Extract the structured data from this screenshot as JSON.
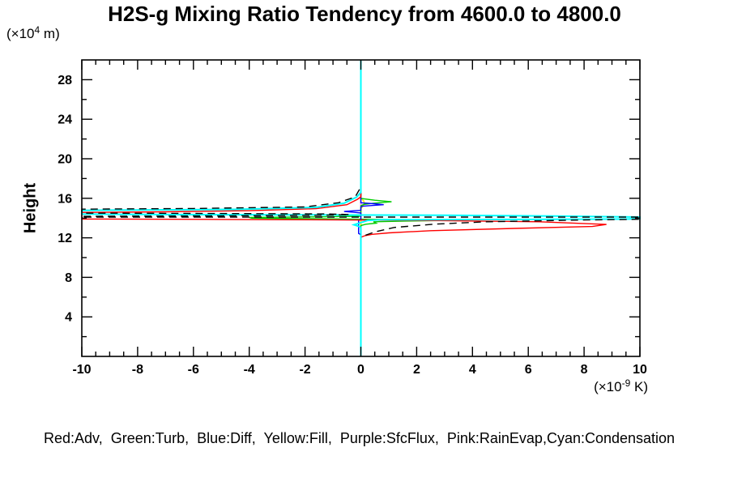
{
  "title": "H2S-g Mixing Ratio Tendency from 4600.0 to 4800.0",
  "axis_unit_left": {
    "prefix": "(×10",
    "sup": "4",
    "suffix": " m)"
  },
  "axis_unit_bottom": {
    "prefix": "(×10",
    "sup": "-9",
    "suffix": " K)"
  },
  "y_axis_title": "Height",
  "legend_text": "Red:Adv,  Green:Turb,  Blue:Diff,  Yellow:Fill,  Purple:SfcFlux,  Pink:RainEvap,Cyan:Condensation",
  "chart_data": {
    "type": "line",
    "title": "H2S-g Mixing Ratio Tendency from 4600.0 to 4800.0",
    "xlabel": "(×10^-9 K)",
    "ylabel": "Height (×10^4 m)",
    "xlim": [
      -10,
      10
    ],
    "ylim": [
      0,
      30
    ],
    "x_major_step": 2,
    "x_minor_step": 0.5,
    "y_major_step": 4,
    "y_minor_step": 2,
    "grid": false,
    "legend_position": "bottom-text-only",
    "x_tick_labels": [
      {
        "v": -10,
        "label": "-10"
      },
      {
        "v": -8,
        "label": "-8"
      },
      {
        "v": -6,
        "label": "-6"
      },
      {
        "v": -4,
        "label": "-4"
      },
      {
        "v": -2,
        "label": "-2"
      },
      {
        "v": 0,
        "label": "0"
      },
      {
        "v": 2,
        "label": "2"
      },
      {
        "v": 4,
        "label": "4"
      },
      {
        "v": 6,
        "label": "6"
      },
      {
        "v": 8,
        "label": "8"
      },
      {
        "v": 10,
        "label": "10"
      }
    ],
    "y_tick_labels": [
      {
        "v": 4,
        "label": "4"
      },
      {
        "v": 8,
        "label": "8"
      },
      {
        "v": 12,
        "label": "12"
      },
      {
        "v": 16,
        "label": "16"
      },
      {
        "v": 20,
        "label": "20"
      },
      {
        "v": 24,
        "label": "24"
      },
      {
        "v": 28,
        "label": "28"
      }
    ],
    "note": "Each series is a vertical profile: x = tendency value (clipped at ±10), y = height. All profiles are zero except near heights 12-16.5.",
    "series": [
      {
        "name": "SfcFlux",
        "color": "#aa00ff",
        "width": 1.4,
        "dash": "",
        "points": [
          [
            0,
            30
          ],
          [
            0,
            0
          ]
        ]
      },
      {
        "name": "RainEvap",
        "color": "#ff9ecd",
        "width": 1.4,
        "dash": "",
        "points": [
          [
            0,
            30
          ],
          [
            0,
            0
          ]
        ]
      },
      {
        "name": "Fill",
        "color": "#ffee00",
        "width": 1.6,
        "dash": "",
        "points": [
          [
            0,
            30
          ],
          [
            0,
            16.0
          ],
          [
            0.1,
            15.75
          ],
          [
            0.13,
            15.45
          ],
          [
            0.06,
            15.15
          ],
          [
            0,
            14.95
          ],
          [
            0,
            0
          ]
        ]
      },
      {
        "name": "Turb",
        "color": "#00cc00",
        "width": 1.4,
        "dash": "",
        "points": [
          [
            0,
            30
          ],
          [
            0,
            15.98
          ],
          [
            0.5,
            15.8
          ],
          [
            1.1,
            15.65
          ],
          [
            0.45,
            15.5
          ],
          [
            0.1,
            15.38
          ],
          [
            0,
            15.25
          ],
          [
            0,
            14.18
          ],
          [
            -1.5,
            14.12
          ],
          [
            -4,
            14.06
          ],
          [
            -3.9,
            13.98
          ],
          [
            -1.5,
            13.93
          ],
          [
            0.3,
            13.88
          ],
          [
            2.2,
            13.83
          ],
          [
            3.3,
            13.77
          ],
          [
            1.6,
            13.7
          ],
          [
            0.45,
            13.62
          ],
          [
            0.55,
            13.48
          ],
          [
            0.18,
            13.38
          ],
          [
            0,
            13.25
          ],
          [
            0,
            0
          ]
        ]
      },
      {
        "name": "Diff",
        "color": "#0000ff",
        "width": 1.4,
        "dash": "",
        "points": [
          [
            0,
            30
          ],
          [
            0,
            15.55
          ],
          [
            0.45,
            15.45
          ],
          [
            0.82,
            15.35
          ],
          [
            0.4,
            15.27
          ],
          [
            0.05,
            15.2
          ],
          [
            0,
            15.1
          ],
          [
            0,
            14.78
          ],
          [
            -0.35,
            14.72
          ],
          [
            -0.6,
            14.66
          ],
          [
            -0.3,
            14.6
          ],
          [
            0,
            14.52
          ],
          [
            0,
            13.85
          ],
          [
            -0.08,
            13.78
          ],
          [
            -0.08,
            12.45
          ],
          [
            0,
            12.3
          ],
          [
            0,
            0
          ]
        ]
      },
      {
        "name": "Adv",
        "color": "#ff0000",
        "width": 1.4,
        "dash": "",
        "points": [
          [
            0,
            30
          ],
          [
            0,
            16.15
          ],
          [
            -0.12,
            15.9
          ],
          [
            -0.5,
            15.35
          ],
          [
            -1.6,
            14.95
          ],
          [
            -4,
            14.75
          ],
          [
            -7,
            14.63
          ],
          [
            -10,
            14.57
          ],
          [
            -10,
            13.9
          ],
          [
            -5,
            13.86
          ],
          [
            -1,
            13.82
          ],
          [
            0.6,
            13.79
          ],
          [
            3,
            13.74
          ],
          [
            6.4,
            13.62
          ],
          [
            8.8,
            13.35
          ],
          [
            8.3,
            13.15
          ],
          [
            5.5,
            12.95
          ],
          [
            2.5,
            12.72
          ],
          [
            1,
            12.5
          ],
          [
            0.4,
            12.35
          ],
          [
            0.15,
            12.22
          ],
          [
            0,
            12.05
          ],
          [
            0,
            0
          ]
        ]
      },
      {
        "name": "Condensation",
        "color": "#00ffff",
        "width": 2,
        "dash": "",
        "points": [
          [
            0,
            30
          ],
          [
            0,
            16.6
          ],
          [
            -0.15,
            16.12
          ],
          [
            -0.6,
            15.5
          ],
          [
            -1.6,
            15.08
          ],
          [
            -4.5,
            14.88
          ],
          [
            -10,
            14.78
          ],
          [
            -10,
            14.4
          ],
          [
            -7.7,
            14.36
          ],
          [
            -3,
            14.33
          ],
          [
            0.3,
            14.3
          ],
          [
            3,
            14.28
          ],
          [
            7,
            14.2
          ],
          [
            10,
            14.1
          ],
          [
            10,
            13.94
          ],
          [
            9.6,
            13.9
          ],
          [
            5,
            13.86
          ],
          [
            0.7,
            13.83
          ],
          [
            0.25,
            13.76
          ],
          [
            -0.25,
            13.32
          ],
          [
            -0.1,
            13.18
          ],
          [
            0,
            13.05
          ],
          [
            0,
            0
          ]
        ]
      },
      {
        "name": "Net",
        "color": "#000000",
        "width": 1.4,
        "dash": "9 6",
        "points": [
          [
            -0.05,
            16.9
          ],
          [
            -0.2,
            16.15
          ],
          [
            -0.8,
            15.55
          ],
          [
            -2,
            15.12
          ],
          [
            -6,
            14.97
          ],
          [
            -10,
            14.9
          ],
          [
            -10,
            14.5
          ],
          [
            -5,
            14.46
          ],
          [
            -1.2,
            14.42
          ],
          [
            -0.4,
            14.35
          ],
          [
            -1.5,
            14.28
          ],
          [
            -5,
            14.22
          ],
          [
            -10,
            14.17
          ],
          [
            -10,
            14.1
          ],
          [
            10,
            14.1
          ],
          [
            10,
            13.88
          ],
          [
            7.9,
            13.8
          ],
          [
            4.5,
            13.62
          ],
          [
            2.6,
            13.38
          ],
          [
            1.2,
            13.05
          ],
          [
            0.5,
            12.6
          ],
          [
            0.18,
            12.28
          ],
          [
            0.05,
            11.95
          ]
        ]
      }
    ]
  }
}
